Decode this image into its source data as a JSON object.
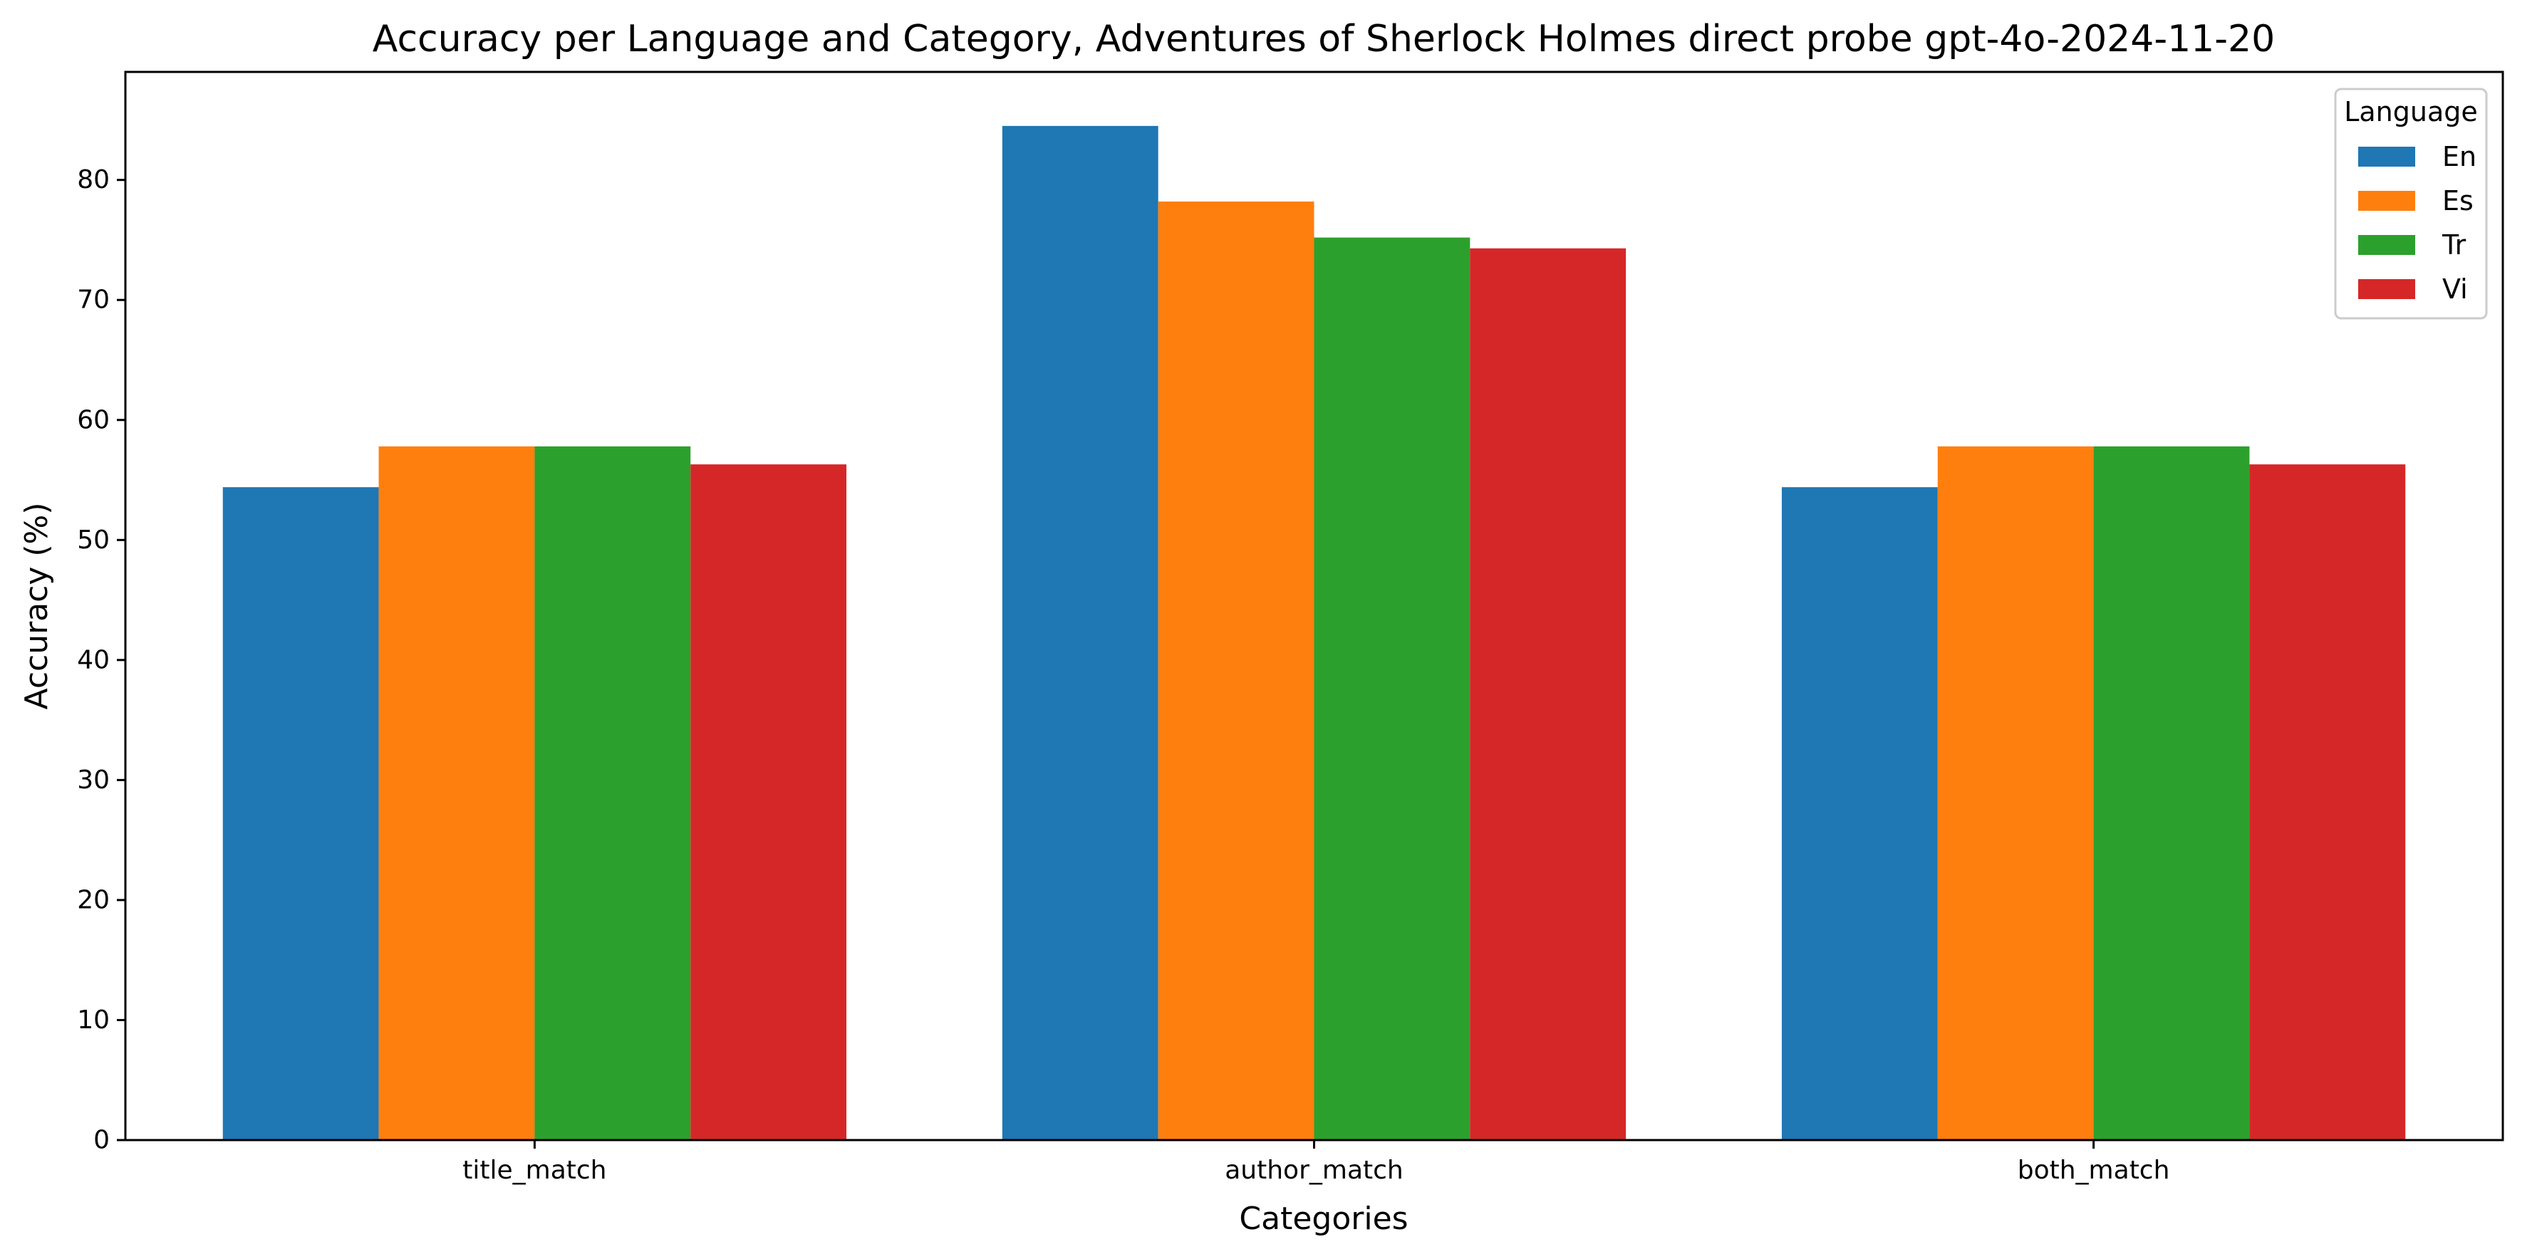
{
  "chart_data": {
    "type": "bar",
    "title": "Accuracy per Language and Category, Adventures of Sherlock Holmes direct probe gpt-4o-2024-11-20",
    "xlabel": "Categories",
    "ylabel": "Accuracy (%)",
    "categories": [
      "title_match",
      "author_match",
      "both_match"
    ],
    "ylim": [
      0,
      89
    ],
    "yticks": [
      0,
      10,
      20,
      30,
      40,
      50,
      60,
      70,
      80
    ],
    "grid": false,
    "legend": {
      "title": "Language",
      "position": "top-right"
    },
    "series": [
      {
        "name": "En",
        "color": "#1f77b4",
        "values": [
          54.4,
          84.5,
          54.4
        ]
      },
      {
        "name": "Es",
        "color": "#ff7f0e",
        "values": [
          57.8,
          78.2,
          57.8
        ]
      },
      {
        "name": "Tr",
        "color": "#2ca02c",
        "values": [
          57.8,
          75.2,
          57.8
        ]
      },
      {
        "name": "Vi",
        "color": "#d62728",
        "values": [
          56.3,
          74.3,
          56.3
        ]
      }
    ]
  }
}
